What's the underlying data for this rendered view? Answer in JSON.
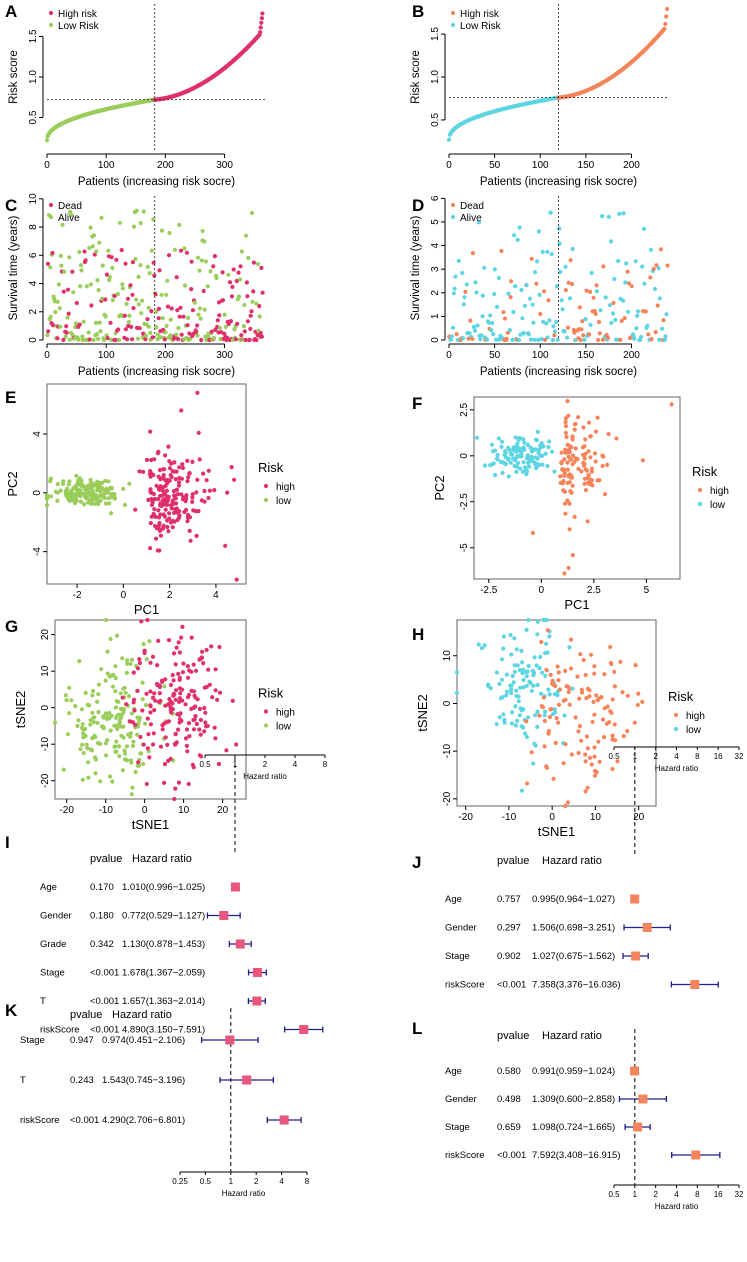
{
  "colors": {
    "high_tcga": "#E0306A",
    "low_tcga": "#9ACD5A",
    "high_icgc": "#F5845A",
    "low_icgc": "#5DD5E3",
    "ci_line": "#1E1E8C",
    "forest_box_tcga": "#E8557D",
    "forest_box_icgc": "#F2855E"
  },
  "chart_data": [
    {
      "panel": "A",
      "type": "scatter",
      "subtype": "risk_curve",
      "xlabel": "Patients (increasing risk socre)",
      "ylabel": "Risk score",
      "n": 365,
      "cutoff_index": 182,
      "cutoff_value": 0.72,
      "xlim": [
        0,
        370
      ],
      "ylim": [
        0.1,
        1.9
      ],
      "xticks": [
        0,
        100,
        200,
        300
      ],
      "yticks": [
        0.5,
        1.0,
        1.5
      ],
      "legend": [
        "High risk",
        "Low Risk"
      ]
    },
    {
      "panel": "B",
      "type": "scatter",
      "subtype": "risk_curve",
      "xlabel": "Patients (increasing risk socre)",
      "ylabel": "Risk score",
      "n": 240,
      "cutoff_index": 120,
      "cutoff_value": 0.76,
      "xlim": [
        0,
        240
      ],
      "ylim": [
        0.15,
        1.85
      ],
      "xticks": [
        0,
        50,
        100,
        150,
        200
      ],
      "yticks": [
        0.5,
        1.0,
        1.5
      ],
      "legend": [
        "High risk",
        "Low Risk"
      ]
    },
    {
      "panel": "C",
      "type": "scatter",
      "subtype": "survival",
      "xlabel": "Patients (increasing risk socre)",
      "ylabel": "Survival time (years)",
      "n": 365,
      "cutoff_index": 182,
      "xlim": [
        0,
        370
      ],
      "ylim": [
        0,
        10.2
      ],
      "xticks": [
        0,
        100,
        200,
        300
      ],
      "yticks": [
        0,
        2,
        4,
        6,
        8,
        10
      ],
      "legend": [
        "Dead",
        "Alive"
      ]
    },
    {
      "panel": "D",
      "type": "scatter",
      "subtype": "survival",
      "xlabel": "Patients (increasing risk socre)",
      "ylabel": "Survival time (years)",
      "n": 240,
      "cutoff_index": 120,
      "xlim": [
        0,
        240
      ],
      "ylim": [
        0,
        6.1
      ],
      "xticks": [
        0,
        50,
        100,
        150,
        200
      ],
      "yticks": [
        0,
        1,
        2,
        3,
        4,
        5,
        6
      ],
      "legend": [
        "Dead",
        "Alive"
      ]
    },
    {
      "panel": "E",
      "type": "scatter",
      "subtype": "pca",
      "xlabel": "PC1",
      "ylabel": "PC2",
      "xlim": [
        -3.3,
        5.3
      ],
      "ylim": [
        -6.2,
        7.4
      ],
      "xticks": [
        -2,
        0,
        2,
        4
      ],
      "yticks": [
        -4,
        0,
        4
      ],
      "legend_title": "Risk",
      "legend": [
        "high",
        "low"
      ]
    },
    {
      "panel": "F",
      "type": "scatter",
      "subtype": "pca",
      "xlabel": "PC1",
      "ylabel": "PC2",
      "xlim": [
        -3.2,
        6.6
      ],
      "ylim": [
        -6.7,
        3.2
      ],
      "xticks": [
        -2.5,
        0.0,
        2.5,
        5.0
      ],
      "yticks": [
        -5.0,
        -2.5,
        0.0,
        2.5
      ],
      "legend_title": "Risk",
      "legend": [
        "high",
        "low"
      ]
    },
    {
      "panel": "G",
      "type": "scatter",
      "subtype": "tsne",
      "xlabel": "tSNE1",
      "ylabel": "tSNE2",
      "xlim": [
        -23,
        26
      ],
      "ylim": [
        -25,
        24
      ],
      "xticks": [
        -20,
        -10,
        0,
        10,
        20
      ],
      "yticks": [
        -20,
        -10,
        0,
        10,
        20
      ],
      "legend_title": "Risk",
      "legend": [
        "high",
        "low"
      ]
    },
    {
      "panel": "H",
      "type": "scatter",
      "subtype": "tsne",
      "xlabel": "tSNE1",
      "ylabel": "tSNE2",
      "xlim": [
        -22,
        24
      ],
      "ylim": [
        -21.5,
        17.5
      ],
      "xticks": [
        -20,
        -10,
        0,
        10,
        20
      ],
      "yticks": [
        -20,
        -10,
        0,
        10
      ],
      "legend_title": "Risk",
      "legend": [
        "high",
        "low"
      ]
    },
    {
      "panel": "I",
      "type": "forest",
      "xlabel": "Hazard ratio",
      "header": [
        "pvalue",
        "Hazard ratio"
      ],
      "xticks": [
        "0.5",
        "1",
        "2",
        "4",
        "8"
      ],
      "xlim": [
        0.5,
        8
      ],
      "rows": [
        {
          "name": "Age",
          "p": "0.170",
          "hr_text": "1.010(0.996−1.025)",
          "hr": 1.01,
          "lo": 0.996,
          "hi": 1.025
        },
        {
          "name": "Gender",
          "p": "0.180",
          "hr_text": "0.772(0.529−1.127)",
          "hr": 0.772,
          "lo": 0.529,
          "hi": 1.127
        },
        {
          "name": "Grade",
          "p": "0.342",
          "hr_text": "1.130(0.878−1.453)",
          "hr": 1.13,
          "lo": 0.878,
          "hi": 1.453
        },
        {
          "name": "Stage",
          "p": "<0.001",
          "hr_text": "1.678(1.367−2.059)",
          "hr": 1.678,
          "lo": 1.367,
          "hi": 2.059
        },
        {
          "name": "T",
          "p": "<0.001",
          "hr_text": "1.657(1.363−2.014)",
          "hr": 1.657,
          "lo": 1.363,
          "hi": 2.014
        },
        {
          "name": "riskScore",
          "p": "<0.001",
          "hr_text": "4.890(3.150−7.591)",
          "hr": 4.89,
          "lo": 3.15,
          "hi": 7.591
        }
      ]
    },
    {
      "panel": "J",
      "type": "forest",
      "xlabel": "Hazard ratio",
      "header": [
        "pvalue",
        "Hazard ratio"
      ],
      "xticks": [
        "0.5",
        "1",
        "2",
        "4",
        "8",
        "16",
        "32"
      ],
      "xlim": [
        0.5,
        32
      ],
      "rows": [
        {
          "name": "Age",
          "p": "0.757",
          "hr_text": "0.995(0.964−1.027)",
          "hr": 0.995,
          "lo": 0.964,
          "hi": 1.027
        },
        {
          "name": "Gender",
          "p": "0.297",
          "hr_text": "1.506(0.698−3.251)",
          "hr": 1.506,
          "lo": 0.698,
          "hi": 3.251
        },
        {
          "name": "Stage",
          "p": "0.902",
          "hr_text": "1.027(0.675−1.562)",
          "hr": 1.027,
          "lo": 0.675,
          "hi": 1.562
        },
        {
          "name": "riskScore",
          "p": "<0.001",
          "hr_text": "7.358(3.376−16.036)",
          "hr": 7.358,
          "lo": 3.376,
          "hi": 16.036
        }
      ]
    },
    {
      "panel": "K",
      "type": "forest",
      "xlabel": "Hazard ratio",
      "header": [
        "pvalue",
        "Hazard ratio"
      ],
      "xticks": [
        "0.25",
        "0.5",
        "1",
        "2",
        "4",
        "8"
      ],
      "xlim": [
        0.25,
        8
      ],
      "rows": [
        {
          "name": "Stage",
          "p": "0.947",
          "hr_text": "0.974(0.451−2.106)",
          "hr": 0.974,
          "lo": 0.451,
          "hi": 2.106
        },
        {
          "name": "T",
          "p": "0.243",
          "hr_text": "1.543(0.745−3.196)",
          "hr": 1.543,
          "lo": 0.745,
          "hi": 3.196
        },
        {
          "name": "riskScore",
          "p": "<0.001",
          "hr_text": "4.290(2.706−6.801)",
          "hr": 4.29,
          "lo": 2.706,
          "hi": 6.801
        }
      ]
    },
    {
      "panel": "L",
      "type": "forest",
      "xlabel": "Hazard ratio",
      "header": [
        "pvalue",
        "Hazard ratio"
      ],
      "xticks": [
        "0.5",
        "1",
        "2",
        "4",
        "8",
        "16",
        "32"
      ],
      "xlim": [
        0.5,
        32
      ],
      "rows": [
        {
          "name": "Age",
          "p": "0.580",
          "hr_text": "0.991(0.959−1.024)",
          "hr": 0.991,
          "lo": 0.959,
          "hi": 1.024
        },
        {
          "name": "Gender",
          "p": "0.498",
          "hr_text": "1.309(0.600−2.858)",
          "hr": 1.309,
          "lo": 0.6,
          "hi": 2.858
        },
        {
          "name": "Stage",
          "p": "0.659",
          "hr_text": "1.098(0.724−1.665)",
          "hr": 1.098,
          "lo": 0.724,
          "hi": 1.665
        },
        {
          "name": "riskScore",
          "p": "<0.001",
          "hr_text": "7.592(3.408−16.915)",
          "hr": 7.592,
          "lo": 3.408,
          "hi": 16.915
        }
      ]
    }
  ]
}
